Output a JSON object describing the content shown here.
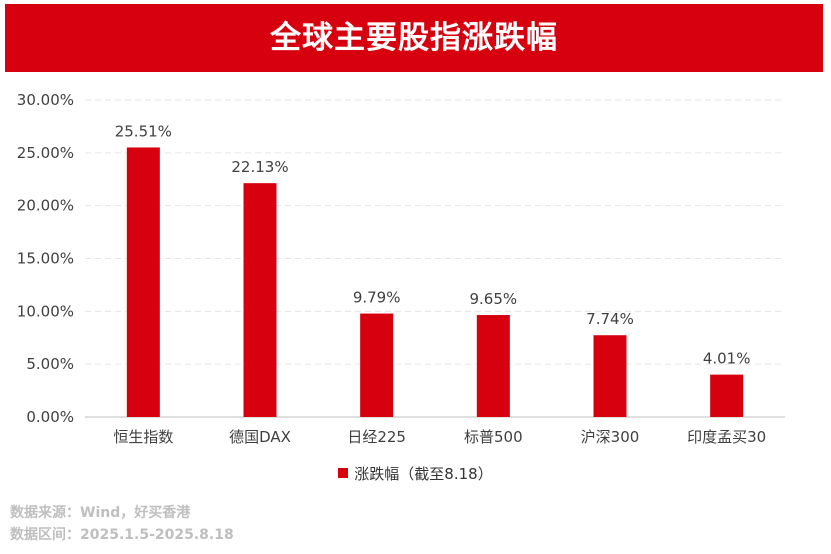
{
  "header": {
    "title": "全球主要股指涨跌幅"
  },
  "colors": {
    "bar": "#d7000f",
    "banner": "#d7000f",
    "grid": "#e6e6e6",
    "axis": "#bfbfbf",
    "text": "#404040"
  },
  "legend": {
    "label": "涨跌幅（截至8.18）"
  },
  "footer": {
    "source": "数据来源：Wind，好买香港",
    "range": "数据区间：2025.1.5-2025.8.18"
  },
  "chart_data": {
    "type": "bar",
    "categories": [
      "恒生指数",
      "德国DAX",
      "日经225",
      "标普500",
      "沪深300",
      "印度孟买30"
    ],
    "series": [
      {
        "name": "涨跌幅（截至8.18）",
        "values": [
          25.51,
          22.13,
          9.79,
          9.65,
          7.74,
          4.01
        ]
      }
    ],
    "data_labels": [
      "25.51%",
      "22.13%",
      "9.79%",
      "9.65%",
      "7.74%",
      "4.01%"
    ],
    "yticks": [
      "0.00%",
      "5.00%",
      "10.00%",
      "15.00%",
      "20.00%",
      "25.00%",
      "30.00%"
    ],
    "ylim": [
      0,
      30
    ],
    "grid": true,
    "legend_position": "bottom"
  }
}
